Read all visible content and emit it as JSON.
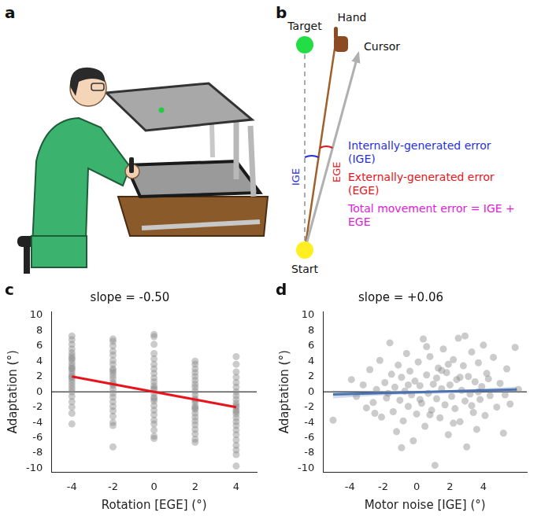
{
  "panels": [
    {
      "panel": "a"
    },
    {
      "panel": "b",
      "labels": {
        "target": "Target",
        "hand": "Hand",
        "cursor": "Cursor",
        "start": "Start",
        "ige": "IGE",
        "ege": "EGE"
      },
      "legend_texts": [
        {
          "text": "Internally-generated error (IGE)",
          "color": "#1f2fe0"
        },
        {
          "text": "Externally-generated error (EGE)",
          "color": "#e8141b"
        },
        {
          "text": "Total movement error = IGE + EGE",
          "color": "#e020d8"
        }
      ]
    }
  ],
  "chart_data": [
    {
      "panel": "c",
      "type": "scatter",
      "title": "slope = -0.50",
      "x_label": "Rotation [EGE] (°)",
      "y_label": "Adaptation (°)",
      "xlim": [
        -5,
        5
      ],
      "xticks": [
        -4,
        -2,
        0,
        2,
        4
      ],
      "ylim": [
        -10.5,
        10.5
      ],
      "yticks": [
        -10,
        -8,
        -6,
        -4,
        -2,
        0,
        2,
        4,
        6,
        8,
        10
      ],
      "grid": false,
      "reference_line": 0,
      "series": [
        {
          "type": "scatter",
          "color": "#8c8c8c",
          "x": [
            -4,
            -4,
            -4,
            -4,
            -4,
            -4,
            -4,
            -4,
            -4,
            -4,
            -4,
            -4,
            -4,
            -4,
            -4,
            -4,
            -4,
            -4,
            -4,
            -4,
            -4,
            -4,
            -4,
            -4,
            -4,
            -4,
            -2,
            -2,
            -2,
            -2,
            -2,
            -2,
            -2,
            -2,
            -2,
            -2,
            -2,
            -2,
            -2,
            -2,
            -2,
            -2,
            -2,
            -2,
            -2,
            -2,
            -2,
            -2,
            -2,
            -2,
            -2,
            0,
            0,
            0,
            0,
            0,
            0,
            0,
            0,
            0,
            0,
            0,
            0,
            0,
            0,
            0,
            0,
            0,
            0,
            0,
            0,
            0,
            0,
            0,
            0,
            0,
            2,
            2,
            2,
            2,
            2,
            2,
            2,
            2,
            2,
            2,
            2,
            2,
            2,
            2,
            2,
            2,
            2,
            2,
            2,
            2,
            2,
            2,
            2,
            2,
            4,
            4,
            4,
            4,
            4,
            4,
            4,
            4,
            4,
            4,
            4,
            4,
            4,
            4,
            4,
            4,
            4,
            4,
            4,
            4,
            4,
            4,
            4,
            4,
            4
          ],
          "values": [
            7.3,
            6.8,
            6.2,
            5.6,
            5.1,
            4.7,
            4.2,
            3.8,
            3.4,
            3.0,
            2.7,
            2.3,
            2.0,
            1.6,
            1.2,
            0.8,
            0.4,
            0.0,
            -0.6,
            -1.3,
            -2.0,
            -2.8,
            -4.2,
            3.1,
            1.9,
            4.4,
            6.9,
            6.6,
            6.0,
            5.3,
            4.8,
            4.1,
            3.6,
            3.0,
            2.5,
            2.1,
            1.7,
            1.2,
            0.8,
            0.3,
            -0.2,
            -0.7,
            -1.3,
            -1.9,
            -2.5,
            -3.2,
            -4.0,
            -4.4,
            -7.2,
            2.8,
            1.0,
            7.5,
            7.2,
            6.2,
            5.0,
            4.3,
            3.6,
            3.0,
            2.4,
            1.8,
            1.3,
            0.8,
            0.3,
            -0.2,
            -0.7,
            -1.2,
            -1.8,
            -2.4,
            -3.0,
            -3.7,
            -4.2,
            -5.0,
            -5.8,
            -6.1,
            0.5,
            -0.9,
            4.0,
            3.6,
            3.0,
            2.5,
            2.0,
            1.5,
            1.0,
            0.6,
            0.1,
            -0.4,
            -0.9,
            -1.4,
            -1.9,
            -2.3,
            -2.8,
            -3.3,
            -3.8,
            -4.3,
            -4.9,
            -5.5,
            -6.2,
            -6.6,
            -1.1,
            -2.1,
            4.6,
            3.6,
            2.6,
            1.9,
            1.2,
            0.6,
            0.0,
            -0.5,
            -1.0,
            -1.5,
            -2.0,
            -2.4,
            -2.9,
            -3.4,
            -3.9,
            -4.4,
            -5.0,
            -5.6,
            -6.3,
            -7.0,
            -7.6,
            -8.2,
            -9.7,
            -1.8,
            -2.6
          ]
        },
        {
          "type": "line",
          "color": "#e8141b",
          "x": [
            -4,
            4
          ],
          "values": [
            2,
            -2
          ]
        }
      ]
    },
    {
      "panel": "d",
      "type": "scatter",
      "title": "slope = +0.06",
      "x_label": "Motor noise [IGE] (°)",
      "y_label": "Adaptation (°)",
      "xlim": [
        -5.6,
        6.6
      ],
      "xticks": [
        -4,
        -2,
        0,
        2,
        4
      ],
      "ylim": [
        -10.5,
        10.5
      ],
      "yticks": [
        -10,
        -8,
        -6,
        -4,
        -2,
        0,
        2,
        4,
        6,
        8,
        10
      ],
      "grid": false,
      "reference_line": 0,
      "series": [
        {
          "type": "scatter",
          "color": "#8c8c8c",
          "x": [
            -5.0,
            -3.9,
            -3.6,
            -3.2,
            -3.0,
            -2.8,
            -2.6,
            -2.4,
            -2.2,
            -2.1,
            -1.9,
            -1.8,
            -1.6,
            -1.5,
            -1.4,
            -1.3,
            -1.2,
            -1.1,
            -1.0,
            -0.9,
            -0.8,
            -0.7,
            -0.6,
            -0.5,
            -0.4,
            -0.3,
            -0.2,
            -0.1,
            0.0,
            0.1,
            0.2,
            0.3,
            0.4,
            0.5,
            0.6,
            0.7,
            0.8,
            0.9,
            1.0,
            1.1,
            1.2,
            1.3,
            1.4,
            1.5,
            1.6,
            1.7,
            1.8,
            1.9,
            2.0,
            2.1,
            2.2,
            2.3,
            2.4,
            2.5,
            2.6,
            2.7,
            2.8,
            2.9,
            3.0,
            3.1,
            3.2,
            3.3,
            3.4,
            3.5,
            3.6,
            3.7,
            3.8,
            3.9,
            4.0,
            4.1,
            4.2,
            4.4,
            4.6,
            4.8,
            5.0,
            5.2,
            5.4,
            5.6,
            5.9,
            6.1,
            0.2,
            1.5,
            -0.5,
            2.6,
            3.3,
            0.8,
            1.9,
            -1.7,
            4.3,
            2.2,
            0.6,
            3.7,
            -2.5,
            1.2,
            5.3,
            2.9,
            -0.9
          ],
          "values": [
            -3.7,
            1.6,
            -0.6,
            0.9,
            -2.1,
            2.9,
            -1.4,
            0.3,
            4.1,
            -3.3,
            1.2,
            -0.8,
            6.4,
            2.3,
            -2.6,
            0.6,
            -5.2,
            3.5,
            -1.1,
            1.9,
            -3.8,
            0.1,
            5.0,
            -1.9,
            2.7,
            -0.4,
            -6.4,
            1.4,
            -2.9,
            3.9,
            0.8,
            -1.5,
            6.9,
            -4.5,
            2.2,
            -0.2,
            4.6,
            -2.4,
            1.0,
            -9.6,
            -0.9,
            3.1,
            -3.4,
            0.4,
            5.6,
            -1.7,
            2.5,
            -5.6,
            0.9,
            -0.6,
            4.2,
            -2.2,
            1.6,
            7.0,
            -3.9,
            0.2,
            3.4,
            -1.2,
            -7.2,
            2.0,
            -0.3,
            5.2,
            -2.7,
            1.3,
            -4.9,
            3.8,
            -1.0,
            0.7,
            6.1,
            -3.1,
            2.4,
            -0.5,
            4.5,
            -2.0,
            1.1,
            -5.4,
            3.0,
            -1.6,
            5.8,
            0.3,
            -1.0,
            2.8,
            0.9,
            1.9,
            -1.8,
            -3.0,
            3.6,
            -0.2,
            1.7,
            -4.1,
            5.9,
            0.0,
            -2.8,
            1.8,
            -0.4,
            7.3,
            -7.3
          ]
        },
        {
          "type": "band",
          "color": "#4c72b0",
          "x": [
            -5,
            -2,
            0.5,
            3,
            6
          ],
          "lower": [
            -0.85,
            -0.45,
            -0.25,
            -0.15,
            -0.05
          ],
          "upper": [
            0.15,
            0.05,
            0.1,
            0.3,
            0.7
          ]
        },
        {
          "type": "line",
          "color": "#4c72b0",
          "x": [
            -5,
            6
          ],
          "values": [
            -0.35,
            0.31
          ]
        }
      ]
    }
  ]
}
